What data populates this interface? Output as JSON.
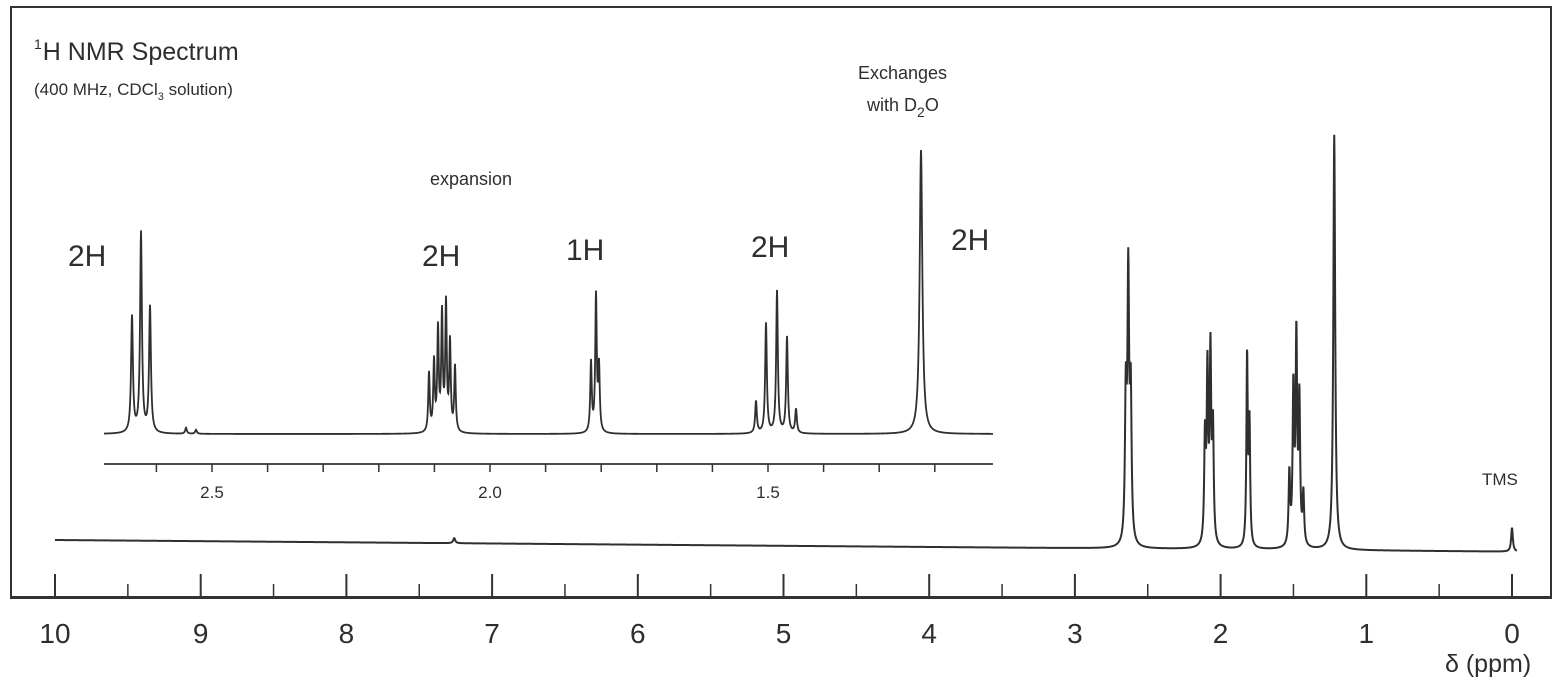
{
  "title_nucleus": "1H",
  "title_sup": "1",
  "title_main": "H NMR Spectrum",
  "subtitle_pre": "(400 MHz, CDCl",
  "subtitle_sub": "3",
  "subtitle_post": " solution)",
  "annotations": {
    "exchanges_line1": "Exchanges",
    "exchanges_line2_pre": "with D",
    "exchanges_line2_sub": "2",
    "exchanges_line2_post": "O",
    "expansion": "expansion",
    "tms": "TMS"
  },
  "integrations": [
    "2H",
    "2H",
    "1H",
    "2H",
    "2H"
  ],
  "chart_data": [
    {
      "type": "line",
      "panel": "main spectrum",
      "xlabel": "δ (ppm)",
      "xlim": [
        10,
        0
      ],
      "x_ticks": [
        "10",
        "9",
        "8",
        "7",
        "6",
        "5",
        "4",
        "3",
        "2",
        "1",
        "0"
      ],
      "peaks": [
        {
          "shift": 2.62,
          "relative_height": 0.68,
          "multiplicity": "triplet"
        },
        {
          "shift": 2.08,
          "relative_height": 0.44,
          "multiplicity": "multiplet"
        },
        {
          "shift": 1.81,
          "relative_height": 0.47,
          "multiplicity": "singlet-like"
        },
        {
          "shift": 1.48,
          "relative_height": 0.5,
          "multiplicity": "multiplet"
        },
        {
          "shift": 1.22,
          "relative_height": 1.0,
          "multiplicity": "singlet"
        },
        {
          "shift": 7.26,
          "relative_height": 0.02,
          "multiplicity": "solvent"
        },
        {
          "shift": 0.0,
          "relative_height": 0.06,
          "multiplicity": "singlet",
          "label": "TMS"
        }
      ]
    },
    {
      "type": "line",
      "panel": "expansion",
      "xlim": [
        2.72,
        1.12
      ],
      "x_ticks": [
        "2.5",
        "2.0",
        "1.5"
      ],
      "multiplets": [
        {
          "center": 2.62,
          "pattern": "triplet",
          "integration": "2H"
        },
        {
          "center": 2.07,
          "pattern": "multiplet",
          "integration": "2H"
        },
        {
          "center": 1.81,
          "pattern": "multiplet",
          "integration": "1H"
        },
        {
          "center": 1.5,
          "pattern": "quintet",
          "integration": "2H"
        },
        {
          "center": 1.22,
          "pattern": "singlet",
          "integration": "2H",
          "note": "Exchanges with D2O"
        }
      ]
    }
  ],
  "colors": {
    "trace": "#2f2f2f",
    "frame": "#333333",
    "text": "#2e2e2e"
  }
}
